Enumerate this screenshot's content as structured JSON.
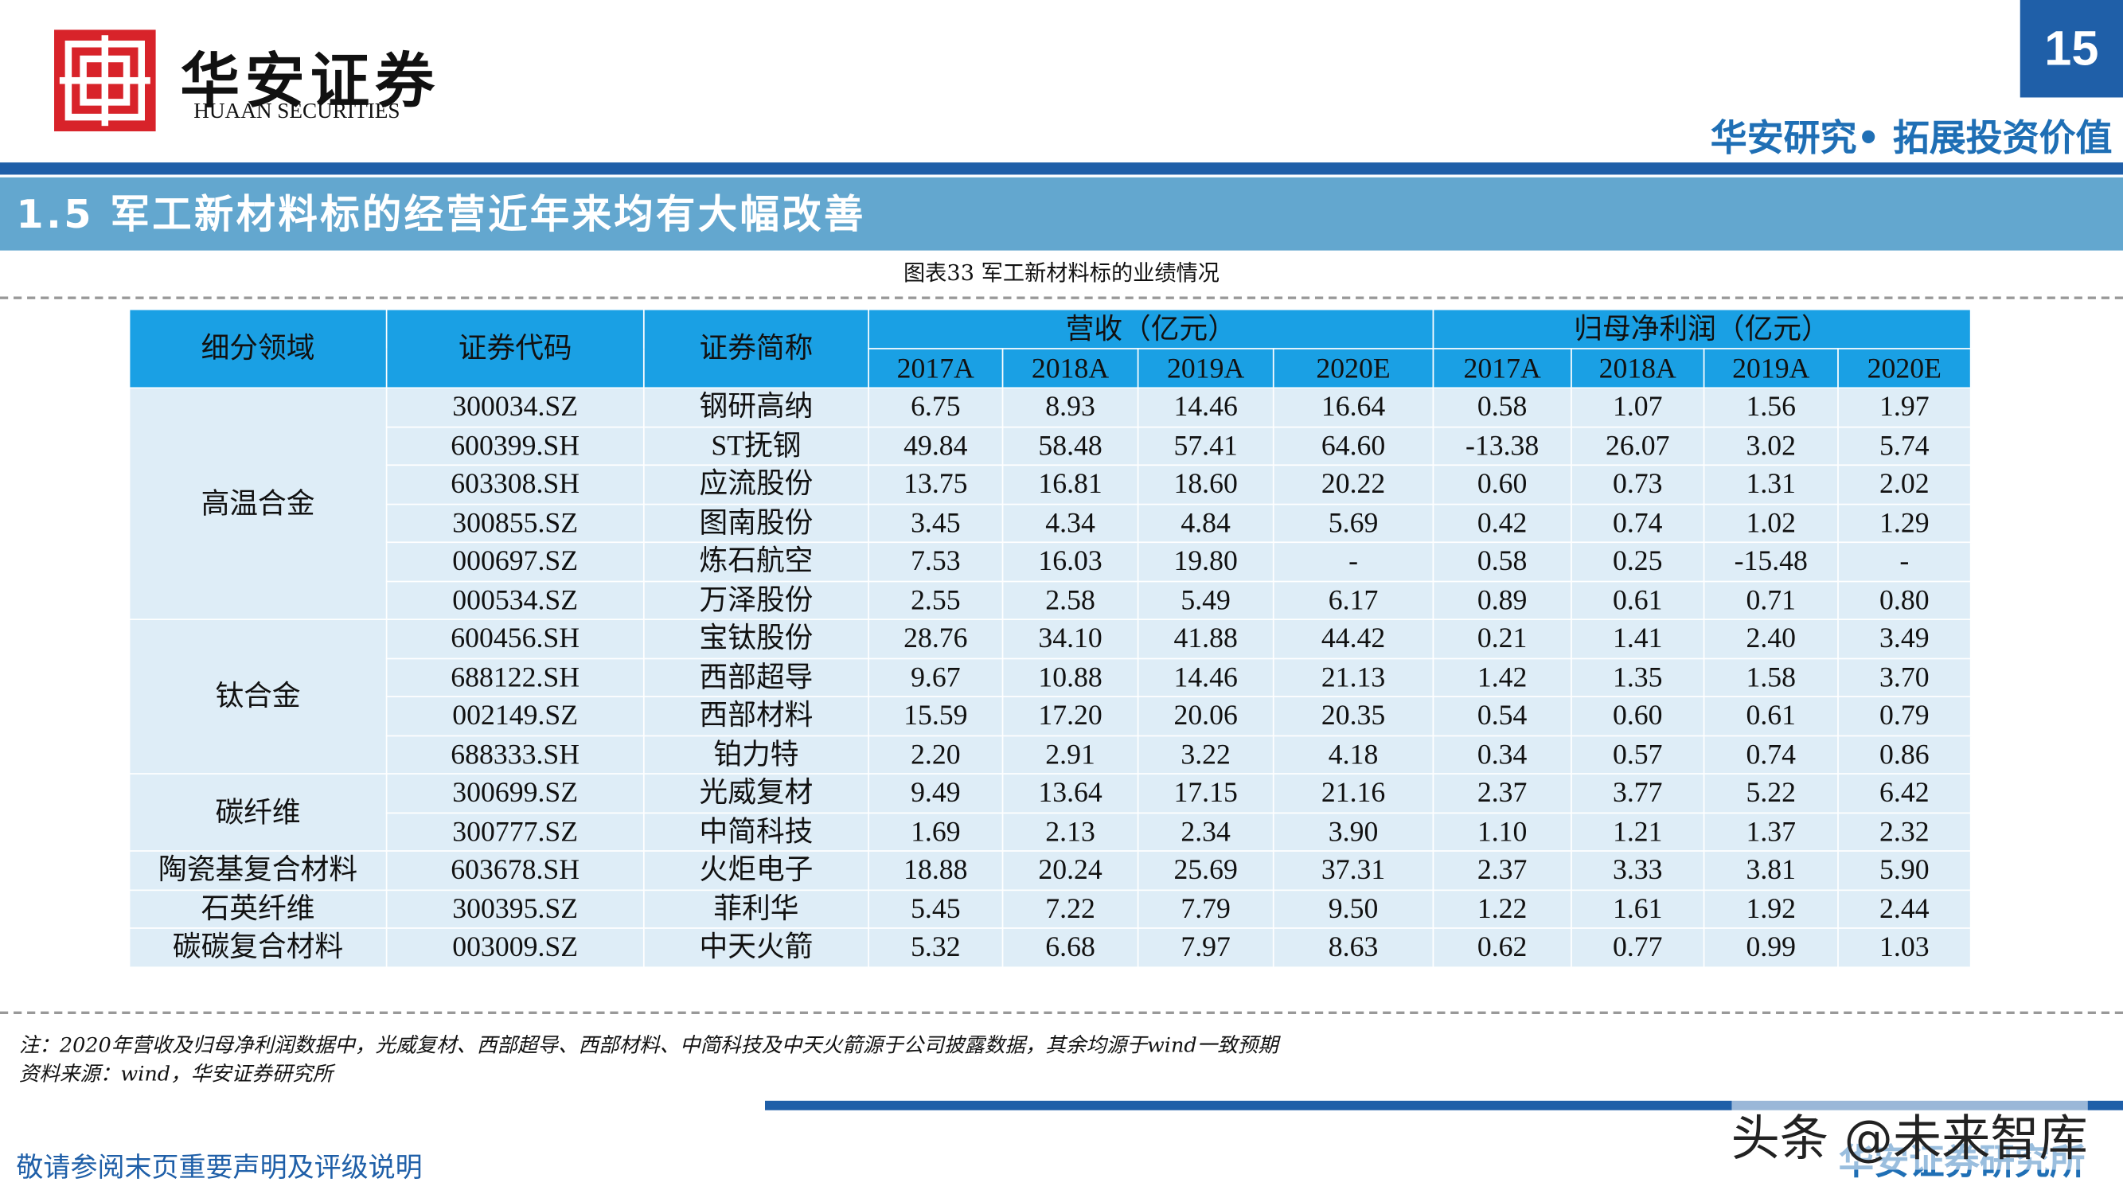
{
  "header": {
    "logo_cn": "华安证券",
    "logo_en": "HUAAN SECURITIES",
    "page_number": "15",
    "tagline": "华安研究• 拓展投资价值"
  },
  "section_title": "1.5 军工新材料标的经营近年来均有大幅改善",
  "table": {
    "caption": "图表33 军工新材料标的业绩情况",
    "header": {
      "columns": [
        "细分领域",
        "证券代码",
        "证券简称"
      ],
      "groups": [
        {
          "name": "营收（亿元）",
          "years": [
            "2017A",
            "2018A",
            "2019A",
            "2020E"
          ]
        },
        {
          "name": "归母净利润（亿元）",
          "years": [
            "2017A",
            "2018A",
            "2019A",
            "2020E"
          ]
        }
      ]
    },
    "segments": [
      {
        "name": "高温合金",
        "rows": [
          [
            "300034.SZ",
            "钢研高纳",
            "6.75",
            "8.93",
            "14.46",
            "16.64",
            "0.58",
            "1.07",
            "1.56",
            "1.97"
          ],
          [
            "600399.SH",
            "ST抚钢",
            "49.84",
            "58.48",
            "57.41",
            "64.60",
            "-13.38",
            "26.07",
            "3.02",
            "5.74"
          ],
          [
            "603308.SH",
            "应流股份",
            "13.75",
            "16.81",
            "18.60",
            "20.22",
            "0.60",
            "0.73",
            "1.31",
            "2.02"
          ],
          [
            "300855.SZ",
            "图南股份",
            "3.45",
            "4.34",
            "4.84",
            "5.69",
            "0.42",
            "0.74",
            "1.02",
            "1.29"
          ],
          [
            "000697.SZ",
            "炼石航空",
            "7.53",
            "16.03",
            "19.80",
            "-",
            "0.58",
            "0.25",
            "-15.48",
            "-"
          ],
          [
            "000534.SZ",
            "万泽股份",
            "2.55",
            "2.58",
            "5.49",
            "6.17",
            "0.89",
            "0.61",
            "0.71",
            "0.80"
          ]
        ]
      },
      {
        "name": "钛合金",
        "rows": [
          [
            "600456.SH",
            "宝钛股份",
            "28.76",
            "34.10",
            "41.88",
            "44.42",
            "0.21",
            "1.41",
            "2.40",
            "3.49"
          ],
          [
            "688122.SH",
            "西部超导",
            "9.67",
            "10.88",
            "14.46",
            "21.13",
            "1.42",
            "1.35",
            "1.58",
            "3.70"
          ],
          [
            "002149.SZ",
            "西部材料",
            "15.59",
            "17.20",
            "20.06",
            "20.35",
            "0.54",
            "0.60",
            "0.61",
            "0.79"
          ],
          [
            "688333.SH",
            "铂力特",
            "2.20",
            "2.91",
            "3.22",
            "4.18",
            "0.34",
            "0.57",
            "0.74",
            "0.86"
          ]
        ]
      },
      {
        "name": "碳纤维",
        "rows": [
          [
            "300699.SZ",
            "光威复材",
            "9.49",
            "13.64",
            "17.15",
            "21.16",
            "2.37",
            "3.77",
            "5.22",
            "6.42"
          ],
          [
            "300777.SZ",
            "中简科技",
            "1.69",
            "2.13",
            "2.34",
            "3.90",
            "1.10",
            "1.21",
            "1.37",
            "2.32"
          ]
        ]
      },
      {
        "name": "陶瓷基复合材料",
        "rows": [
          [
            "603678.SH",
            "火炬电子",
            "18.88",
            "20.24",
            "25.69",
            "37.31",
            "2.37",
            "3.33",
            "3.81",
            "5.90"
          ]
        ]
      },
      {
        "name": "石英纤维",
        "rows": [
          [
            "300395.SZ",
            "菲利华",
            "5.45",
            "7.22",
            "7.79",
            "9.50",
            "1.22",
            "1.61",
            "1.92",
            "2.44"
          ]
        ]
      },
      {
        "name": "碳碳复合材料",
        "rows": [
          [
            "003009.SZ",
            "中天火箭",
            "5.32",
            "6.68",
            "7.97",
            "8.63",
            "0.62",
            "0.77",
            "0.99",
            "1.03"
          ]
        ]
      }
    ]
  },
  "notes": [
    "注：2020年营收及归母净利润数据中，光威复材、西部超导、西部材料、中简科技及中天火箭源于公司披露数据，其余均源于wind一致预期",
    "资料来源：wind，华安证券研究所"
  ],
  "footer": {
    "disclaimer": "敬请参阅末页重要声明及评级说明",
    "company": "华安证券研究所",
    "watermark": "头条 @未来智库"
  }
}
